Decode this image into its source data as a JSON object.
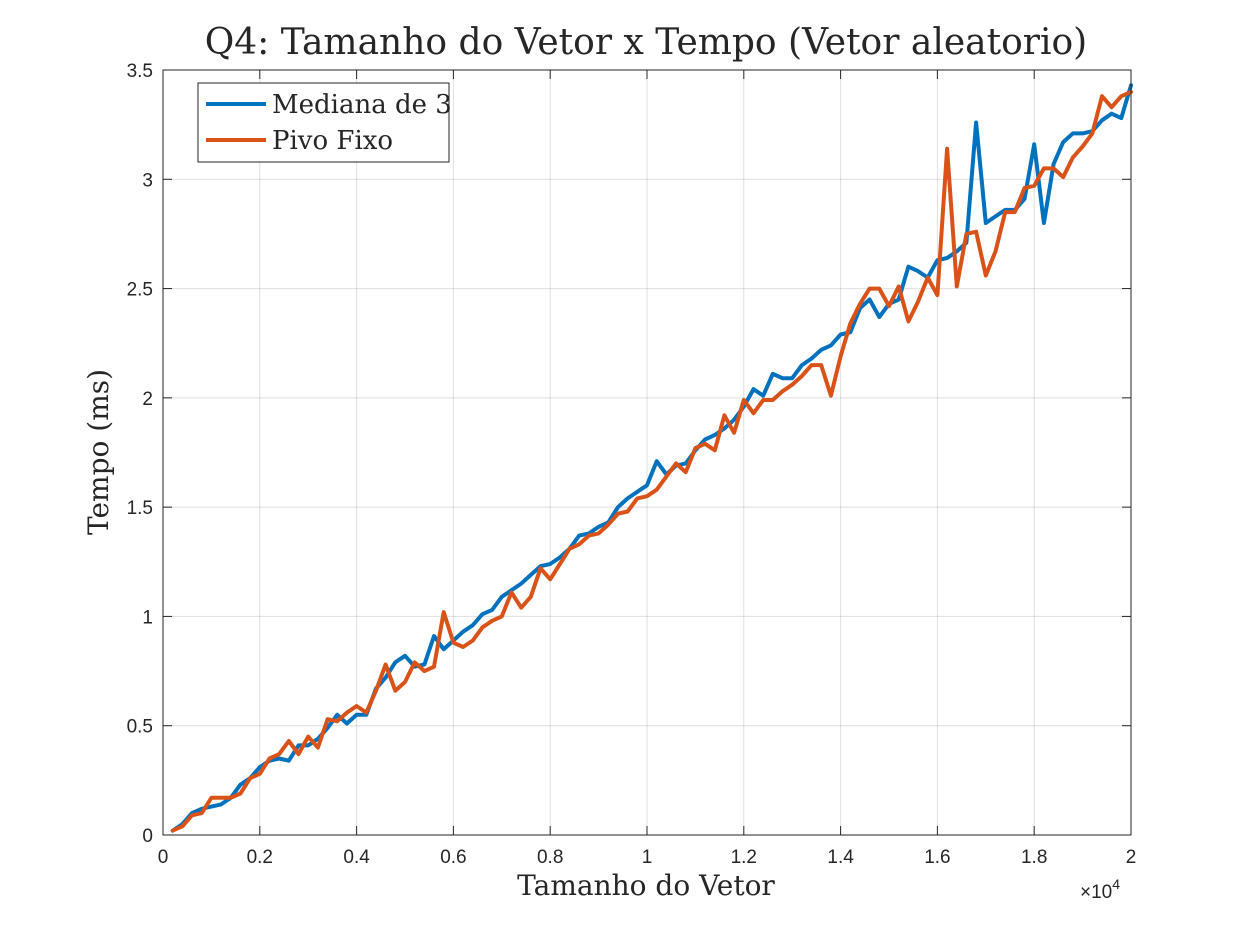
{
  "chart_data": {
    "type": "line",
    "title": "Q4: Tamanho do Vetor x Tempo (Vetor aleatorio)",
    "xlabel": "Tamanho do Vetor",
    "ylabel": "Tempo (ms)",
    "x_exponent_label": "×10",
    "x_exponent_power": "4",
    "xlim": [
      0,
      20000
    ],
    "ylim": [
      0,
      3.5
    ],
    "xtick_values": [
      0,
      2000,
      4000,
      6000,
      8000,
      10000,
      12000,
      14000,
      16000,
      18000,
      20000
    ],
    "xtick_labels": [
      "0",
      "0.2",
      "0.4",
      "0.6",
      "0.8",
      "1",
      "1.2",
      "1.4",
      "1.6",
      "1.8",
      "2"
    ],
    "ytick_values": [
      0,
      0.5,
      1,
      1.5,
      2,
      2.5,
      3,
      3.5
    ],
    "ytick_labels": [
      "0",
      "0.5",
      "1",
      "1.5",
      "2",
      "2.5",
      "3",
      "3.5"
    ],
    "grid": true,
    "legend_position": "top-left",
    "x": [
      200,
      400,
      600,
      800,
      1000,
      1200,
      1400,
      1600,
      1800,
      2000,
      2200,
      2400,
      2600,
      2800,
      3000,
      3200,
      3400,
      3600,
      3800,
      4000,
      4200,
      4400,
      4600,
      4800,
      5000,
      5200,
      5400,
      5600,
      5800,
      6000,
      6200,
      6400,
      6600,
      6800,
      7000,
      7200,
      7400,
      7600,
      7800,
      8000,
      8200,
      8400,
      8600,
      8800,
      9000,
      9200,
      9400,
      9600,
      9800,
      10000,
      10200,
      10400,
      10600,
      10800,
      11000,
      11200,
      11400,
      11600,
      11800,
      12000,
      12200,
      12400,
      12600,
      12800,
      13000,
      13200,
      13400,
      13600,
      13800,
      14000,
      14200,
      14400,
      14600,
      14800,
      15000,
      15200,
      15400,
      15600,
      15800,
      16000,
      16200,
      16400,
      16600,
      16800,
      17000,
      17200,
      17400,
      17600,
      17800,
      18000,
      18200,
      18400,
      18600,
      18800,
      19000,
      19200,
      19400,
      19600,
      19800,
      20000
    ],
    "series": [
      {
        "name": "Mediana de 3",
        "color": "#0072BD",
        "values": [
          0.02,
          0.05,
          0.1,
          0.12,
          0.13,
          0.14,
          0.17,
          0.23,
          0.26,
          0.31,
          0.34,
          0.35,
          0.34,
          0.41,
          0.41,
          0.44,
          0.49,
          0.55,
          0.51,
          0.55,
          0.55,
          0.67,
          0.72,
          0.79,
          0.82,
          0.77,
          0.78,
          0.91,
          0.85,
          0.89,
          0.93,
          0.96,
          1.01,
          1.03,
          1.09,
          1.12,
          1.15,
          1.19,
          1.23,
          1.24,
          1.27,
          1.31,
          1.37,
          1.38,
          1.41,
          1.43,
          1.5,
          1.54,
          1.57,
          1.6,
          1.71,
          1.65,
          1.69,
          1.7,
          1.76,
          1.81,
          1.83,
          1.86,
          1.9,
          1.96,
          2.04,
          2.01,
          2.11,
          2.09,
          2.09,
          2.15,
          2.18,
          2.22,
          2.24,
          2.29,
          2.3,
          2.41,
          2.45,
          2.37,
          2.43,
          2.45,
          2.6,
          2.58,
          2.55,
          2.63,
          2.64,
          2.67,
          2.71,
          3.26,
          2.8,
          2.83,
          2.86,
          2.86,
          2.91,
          3.16,
          2.8,
          3.07,
          3.17,
          3.21,
          3.21,
          3.22,
          3.27,
          3.3,
          3.28,
          3.43
        ]
      },
      {
        "name": "Pivo Fixo",
        "color": "#D95319",
        "values": [
          0.02,
          0.04,
          0.09,
          0.1,
          0.17,
          0.17,
          0.17,
          0.19,
          0.26,
          0.28,
          0.35,
          0.37,
          0.43,
          0.37,
          0.45,
          0.4,
          0.53,
          0.52,
          0.56,
          0.59,
          0.56,
          0.66,
          0.78,
          0.66,
          0.7,
          0.79,
          0.75,
          0.77,
          1.02,
          0.88,
          0.86,
          0.89,
          0.95,
          0.98,
          1.0,
          1.11,
          1.04,
          1.09,
          1.22,
          1.17,
          1.24,
          1.31,
          1.33,
          1.37,
          1.38,
          1.42,
          1.47,
          1.48,
          1.54,
          1.55,
          1.58,
          1.64,
          1.7,
          1.66,
          1.77,
          1.79,
          1.76,
          1.92,
          1.84,
          1.99,
          1.93,
          1.99,
          1.99,
          2.03,
          2.06,
          2.1,
          2.15,
          2.15,
          2.01,
          2.19,
          2.34,
          2.43,
          2.5,
          2.5,
          2.42,
          2.51,
          2.35,
          2.44,
          2.55,
          2.47,
          3.14,
          2.51,
          2.75,
          2.76,
          2.56,
          2.67,
          2.85,
          2.85,
          2.96,
          2.97,
          3.05,
          3.05,
          3.01,
          3.1,
          3.15,
          3.21,
          3.38,
          3.33,
          3.38,
          3.4
        ]
      }
    ]
  }
}
